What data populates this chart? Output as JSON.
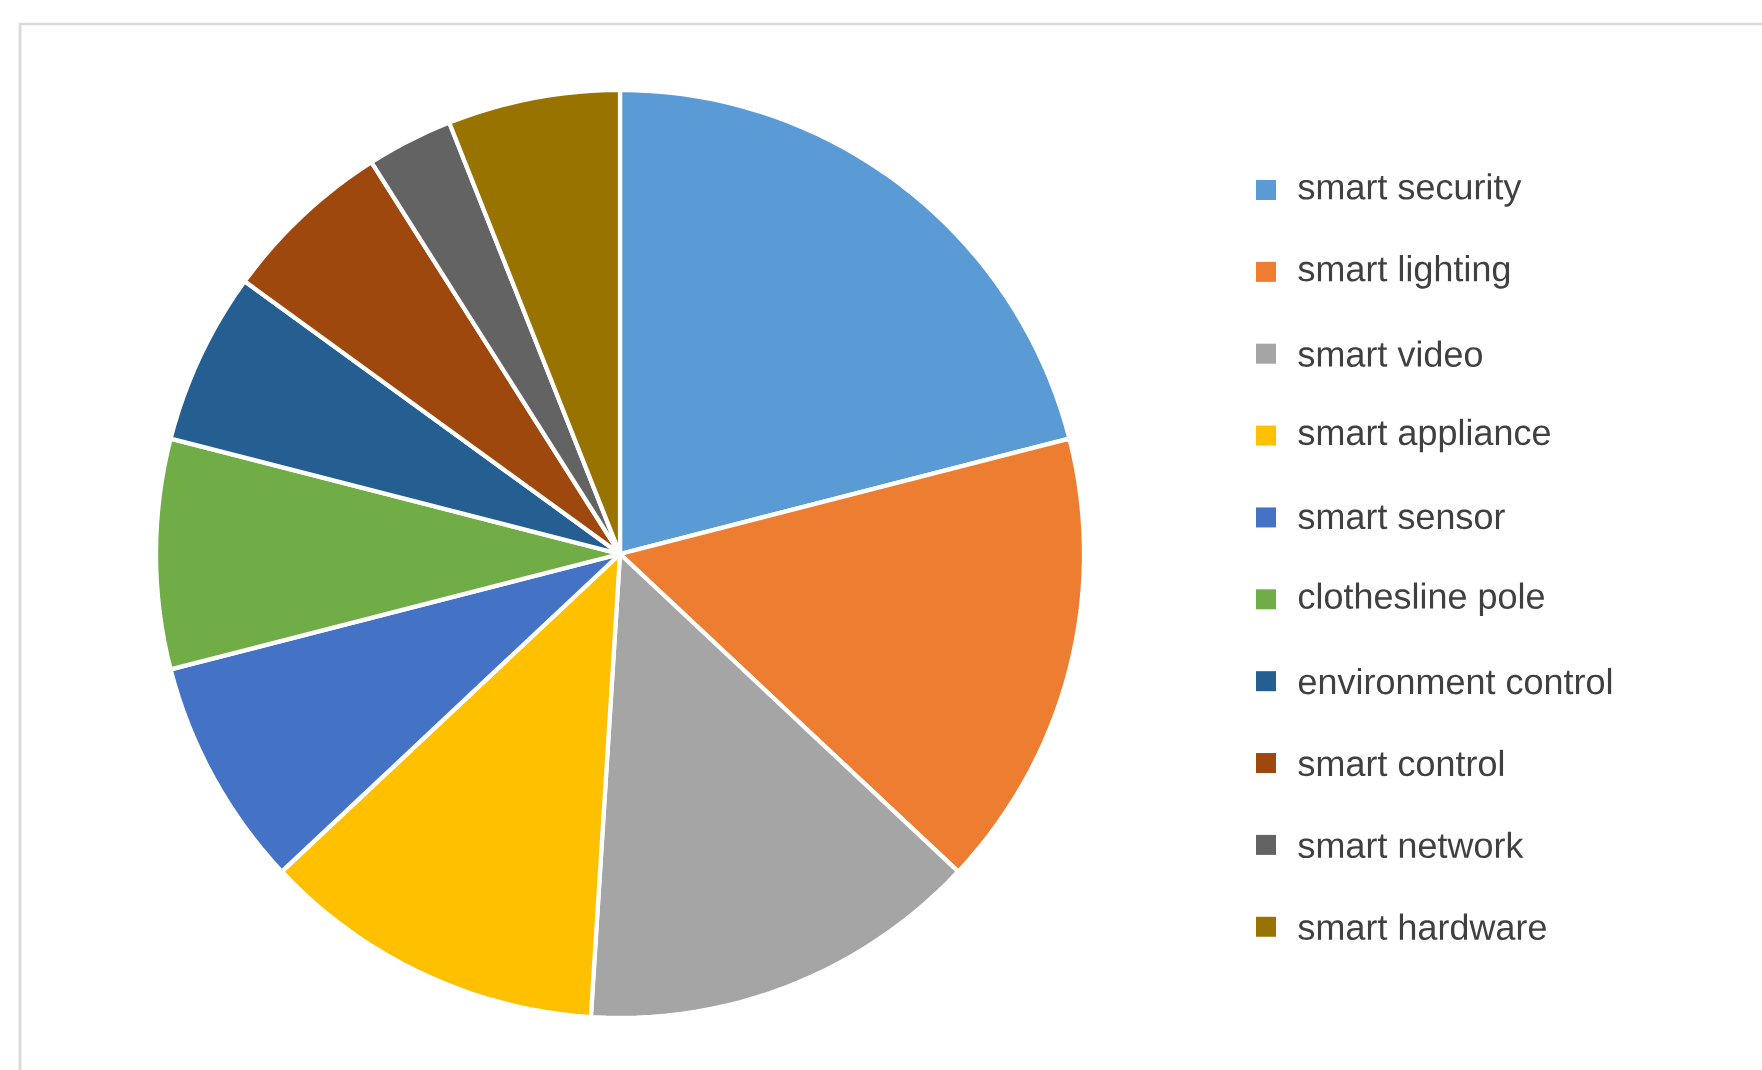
{
  "chart_data": {
    "type": "pie",
    "legend": "right",
    "categories": [
      "smart security",
      "smart lighting",
      "smart video",
      "smart appliance",
      "smart sensor",
      "clothesline pole",
      "environment control",
      "smart control",
      "smart network",
      "smart hardware"
    ],
    "values": [
      21,
      16,
      14,
      12,
      8,
      8,
      6,
      6,
      3,
      6
    ],
    "colors": [
      "#5b9bd5",
      "#ed7d31",
      "#a5a5a5",
      "#ffc000",
      "#4472c4",
      "#70ad47",
      "#255e91",
      "#9e480e",
      "#636363",
      "#997300"
    ]
  }
}
